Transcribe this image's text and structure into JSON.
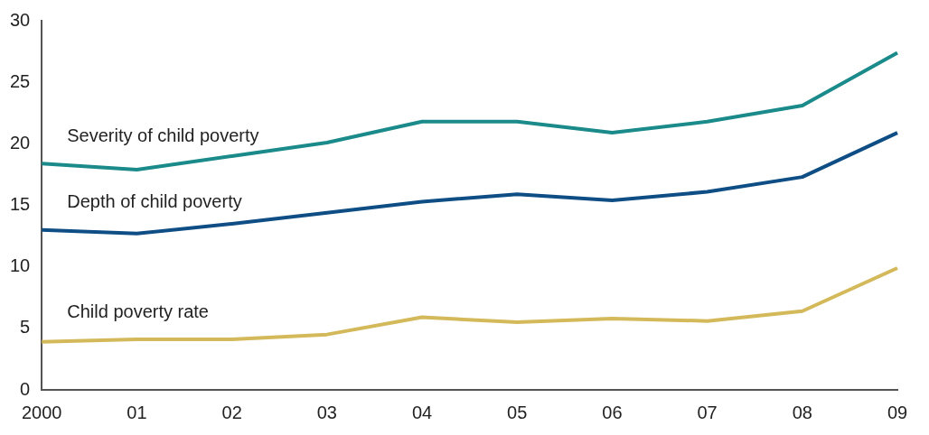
{
  "chart_data": {
    "type": "line",
    "categories": [
      "2000",
      "01",
      "02",
      "03",
      "04",
      "05",
      "06",
      "07",
      "08",
      "09"
    ],
    "series": [
      {
        "name": "Severity of child poverty",
        "color": "#1a8a8a",
        "values": [
          18.4,
          17.9,
          19.0,
          20.1,
          21.8,
          21.8,
          20.9,
          21.8,
          23.1,
          27.4
        ]
      },
      {
        "name": "Depth of child poverty",
        "color": "#0e4e85",
        "values": [
          13.0,
          12.7,
          13.5,
          14.4,
          15.3,
          15.9,
          15.4,
          16.1,
          17.3,
          20.9
        ]
      },
      {
        "name": "Child poverty rate",
        "color": "#d4b95a",
        "values": [
          3.9,
          4.1,
          4.1,
          4.5,
          5.9,
          5.5,
          5.8,
          5.6,
          6.4,
          9.9
        ]
      }
    ],
    "ylim": [
      0,
      30
    ],
    "yticks": [
      0,
      5,
      10,
      15,
      20,
      25,
      30
    ],
    "grid": false,
    "legend": false,
    "marker": "none",
    "line_style": "solid"
  }
}
